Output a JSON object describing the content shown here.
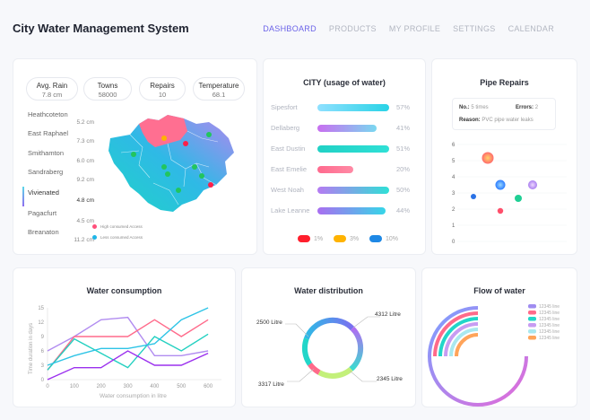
{
  "app": {
    "title": "City Water Management System"
  },
  "nav": {
    "items": [
      {
        "label": "DASHBOARD",
        "active": true
      },
      {
        "label": "PRODUCTS",
        "active": false
      },
      {
        "label": "MY PROFILE",
        "active": false
      },
      {
        "label": "SETTINGS",
        "active": false
      },
      {
        "label": "CALENDAR",
        "active": false
      }
    ]
  },
  "overview": {
    "stats": [
      {
        "label": "Avg. Rain",
        "value": "7.8 cm"
      },
      {
        "label": "Towns",
        "value": "58000"
      },
      {
        "label": "Repairs",
        "value": "10"
      },
      {
        "label": "Temperature",
        "value": "68.1"
      }
    ],
    "places": [
      {
        "name": "Heathcoteton",
        "value": "5.2 cm"
      },
      {
        "name": "East Raphael",
        "value": "7.3 cm"
      },
      {
        "name": "Smithamton",
        "value": "6.0 cm"
      },
      {
        "name": "Sandraberg",
        "value": "9.2 cm"
      },
      {
        "name": "Vivienated",
        "value": "4.8 cm",
        "selected": true
      },
      {
        "name": "Pagacfurt",
        "value": "4.5 cm"
      },
      {
        "name": "Breanaton",
        "value": "11.2 cm"
      }
    ],
    "legend": [
      {
        "label": "High consumed Access",
        "color": "#ff4f7b"
      },
      {
        "label": "Less consumed Access",
        "color": "#1fb6e8"
      }
    ]
  },
  "city_usage": {
    "title": "CITY (usage of water)",
    "bars": [
      {
        "name": "Sipesfort",
        "percent": 57,
        "label": "57%",
        "color": "#29d3e6"
      },
      {
        "name": "Dellaberg",
        "percent": 41,
        "label": "41%",
        "color": "#b06cf2"
      },
      {
        "name": "East Dustin",
        "percent": 51,
        "label": "51%",
        "color": "#22d6c9"
      },
      {
        "name": "East Emelie",
        "percent": 20,
        "label": "20%",
        "color": "#ff6a8e"
      },
      {
        "name": "West Noah",
        "percent": 50,
        "label": "50%",
        "color": "#3adbe0"
      },
      {
        "name": "Lake Leanne",
        "percent": 44,
        "label": "44%",
        "color": "#a96ef0"
      }
    ],
    "legend": [
      {
        "label": "1%",
        "color": "#ff1f2d"
      },
      {
        "label": "3%",
        "color": "#ffb300"
      },
      {
        "label": "10%",
        "color": "#1e88e5"
      }
    ]
  },
  "pipe_repairs": {
    "title": "Pipe Repairs",
    "info": {
      "no_label": "No.:",
      "no_value": "5 times",
      "errors_label": "Errors:",
      "errors_value": "2",
      "reason_label": "Reason:",
      "reason_value": "PVC pipe water leaks"
    },
    "y_ticks": [
      "6",
      "5",
      "4",
      "3",
      "2",
      "1",
      "0"
    ]
  },
  "water_consumption": {
    "title": "Water consumption",
    "chart_data": {
      "type": "line",
      "xlabel": "Water consumption in litre",
      "ylabel": "Time duration in days",
      "x": [
        0,
        100,
        200,
        300,
        400,
        500,
        600
      ],
      "x_ticks": [
        "0",
        "100",
        "200",
        "300",
        "400",
        "500",
        "600"
      ],
      "y_ticks": [
        "0",
        "3",
        "6",
        "9",
        "12",
        "15"
      ],
      "xlim": [
        0,
        650
      ],
      "ylim": [
        0,
        15
      ],
      "series": [
        {
          "color": "#b18cf0",
          "values": [
            6,
            9,
            12.5,
            13,
            5,
            5,
            6
          ]
        },
        {
          "color": "#ff6b8b",
          "values": [
            2,
            9,
            9,
            9,
            12.5,
            9,
            12.5
          ]
        },
        {
          "color": "#22d0c0",
          "values": [
            2,
            8.5,
            5.5,
            2.5,
            9,
            6,
            9.5
          ]
        },
        {
          "color": "#2ec4e6",
          "values": [
            3,
            5,
            6.5,
            6.5,
            7.5,
            12.5,
            15
          ]
        },
        {
          "color": "#9b30ee",
          "values": [
            0,
            2.5,
            2.5,
            6,
            3,
            3,
            5.5
          ]
        }
      ]
    }
  },
  "water_distribution": {
    "title": "Water distribution",
    "labels": [
      "2500 Litre",
      "4312 Litre",
      "3317 Litre",
      "2345 Litre"
    ]
  },
  "flow": {
    "title": "Flow of water",
    "legend": [
      {
        "label": "12345 line",
        "color": "#9f8cf0"
      },
      {
        "label": "12345 line",
        "color": "#ff6a8a"
      },
      {
        "label": "12345 line",
        "color": "#22d6c9"
      },
      {
        "label": "12345 line",
        "color": "#c79cf2"
      },
      {
        "label": "12345 line",
        "color": "#a9e8ef"
      },
      {
        "label": "12345 line",
        "color": "#ffa45a"
      }
    ]
  }
}
